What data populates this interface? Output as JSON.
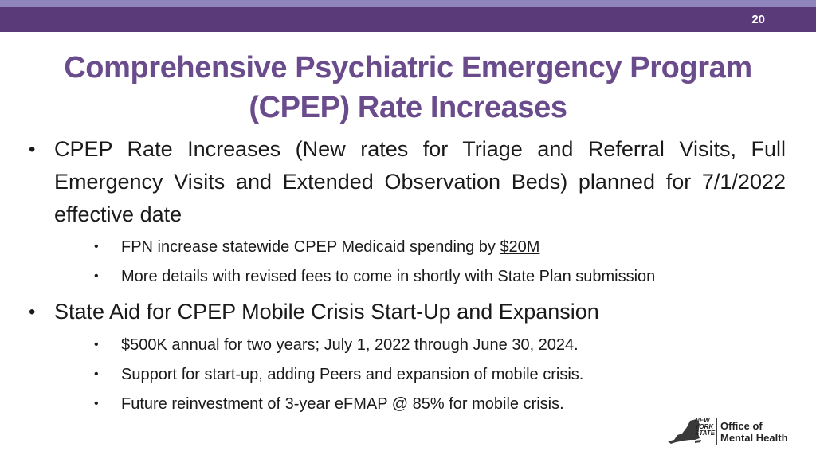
{
  "slide": {
    "page_number": "20",
    "title_line1": "Comprehensive Psychiatric Emergency Program",
    "title_line2": "(CPEP) Rate Increases"
  },
  "bullets": [
    {
      "text": "CPEP Rate Increases (New rates for Triage and Referral Visits, Full Emergency Visits and Extended Observation Beds) planned for 7/1/2022 effective date",
      "sub": [
        {
          "prefix": "FPN increase statewide CPEP Medicaid spending by ",
          "link": "$20M"
        },
        {
          "text": "More details with revised fees to come in shortly with State Plan submission"
        }
      ]
    },
    {
      "text": "State Aid for CPEP Mobile Crisis Start-Up and Expansion",
      "sub": [
        {
          "text": "$500K annual for two years; July 1, 2022 through June 30, 2024."
        },
        {
          "text": "Support for start-up, adding Peers and expansion of mobile crisis."
        },
        {
          "text": "Future reinvestment of 3-year eFMAP @ 85% for mobile crisis."
        }
      ]
    }
  ],
  "logo": {
    "state_line1": "NEW",
    "state_line2": "YORK",
    "state_line3": "STATE",
    "office_line1": "Office of",
    "office_line2": "Mental Health"
  },
  "colors": {
    "top_band_light": "#8e86bd",
    "top_band_dark": "#5b3a7a",
    "title": "#6a4b8c"
  },
  "icons": [
    "bullet-dot-icon",
    "new-york-state-map-icon"
  ]
}
